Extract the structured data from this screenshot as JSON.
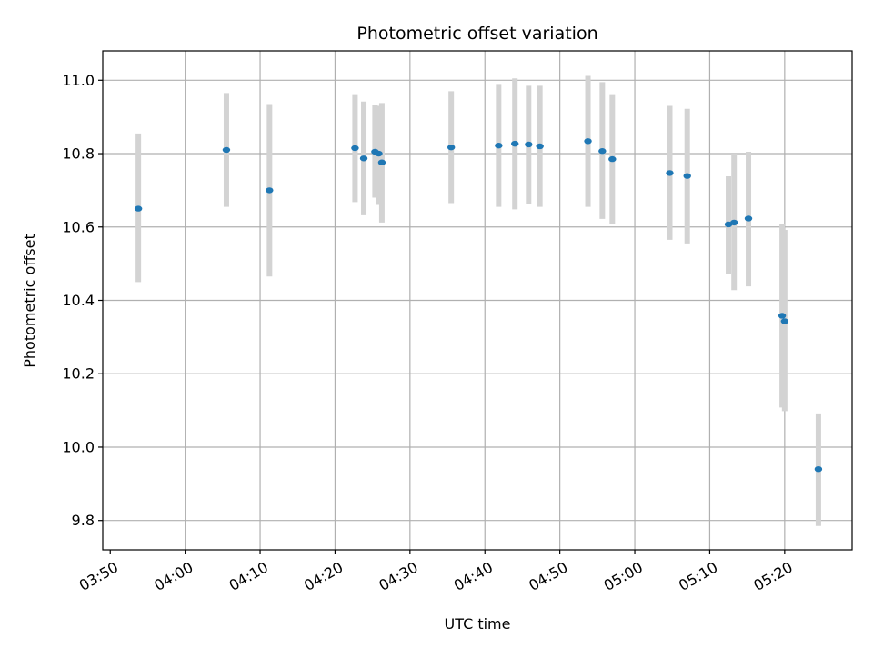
{
  "chart_data": {
    "type": "scatter",
    "title": "Photometric offset variation",
    "xlabel": "UTC time",
    "ylabel": "Photometric offset",
    "grid": true,
    "colors": {
      "points": "#1f77b4",
      "errorbars": "#d3d3d3",
      "grid": "#b0b0b0"
    },
    "x_unit": "UTC clock time",
    "xlim": [
      "03:49",
      "05:29"
    ],
    "ylim": [
      9.72,
      11.08
    ],
    "x_ticks": [
      "03:50",
      "04:00",
      "04:10",
      "04:20",
      "04:30",
      "04:40",
      "04:50",
      "05:00",
      "05:10",
      "05:20"
    ],
    "y_ticks": [
      "9.8",
      "10.0",
      "10.2",
      "10.4",
      "10.6",
      "10.8",
      "11.0"
    ],
    "points": [
      {
        "x": "03:53:45",
        "y": 10.65,
        "err_low": 10.45,
        "err_high": 10.855
      },
      {
        "x": "04:05:30",
        "y": 10.81,
        "err_low": 10.655,
        "err_high": 10.965
      },
      {
        "x": "04:11:15",
        "y": 10.7,
        "err_low": 10.465,
        "err_high": 10.935
      },
      {
        "x": "04:22:40",
        "y": 10.815,
        "err_low": 10.668,
        "err_high": 10.962
      },
      {
        "x": "04:23:50",
        "y": 10.787,
        "err_low": 10.632,
        "err_high": 10.942
      },
      {
        "x": "04:25:20",
        "y": 10.805,
        "err_low": 10.68,
        "err_high": 10.932
      },
      {
        "x": "04:25:50",
        "y": 10.8,
        "err_low": 10.66,
        "err_high": 10.93
      },
      {
        "x": "04:26:15",
        "y": 10.776,
        "err_low": 10.612,
        "err_high": 10.938
      },
      {
        "x": "04:35:30",
        "y": 10.817,
        "err_low": 10.665,
        "err_high": 10.97
      },
      {
        "x": "04:41:50",
        "y": 10.822,
        "err_low": 10.655,
        "err_high": 10.99
      },
      {
        "x": "04:44:00",
        "y": 10.827,
        "err_low": 10.648,
        "err_high": 11.005
      },
      {
        "x": "04:45:50",
        "y": 10.825,
        "err_low": 10.662,
        "err_high": 10.985
      },
      {
        "x": "04:47:20",
        "y": 10.82,
        "err_low": 10.655,
        "err_high": 10.985
      },
      {
        "x": "04:53:45",
        "y": 10.834,
        "err_low": 10.655,
        "err_high": 11.012
      },
      {
        "x": "04:55:40",
        "y": 10.807,
        "err_low": 10.622,
        "err_high": 10.995
      },
      {
        "x": "04:57:00",
        "y": 10.785,
        "err_low": 10.608,
        "err_high": 10.962
      },
      {
        "x": "05:04:40",
        "y": 10.747,
        "err_low": 10.565,
        "err_high": 10.93
      },
      {
        "x": "05:07:00",
        "y": 10.739,
        "err_low": 10.555,
        "err_high": 10.922
      },
      {
        "x": "05:12:30",
        "y": 10.607,
        "err_low": 10.472,
        "err_high": 10.738
      },
      {
        "x": "05:13:15",
        "y": 10.612,
        "err_low": 10.428,
        "err_high": 10.8
      },
      {
        "x": "05:15:10",
        "y": 10.623,
        "err_low": 10.438,
        "err_high": 10.805
      },
      {
        "x": "05:19:40",
        "y": 10.358,
        "err_low": 10.108,
        "err_high": 10.608
      },
      {
        "x": "05:20:00",
        "y": 10.343,
        "err_low": 10.098,
        "err_high": 10.592
      },
      {
        "x": "05:24:30",
        "y": 9.94,
        "err_low": 9.785,
        "err_high": 10.092
      }
    ]
  }
}
